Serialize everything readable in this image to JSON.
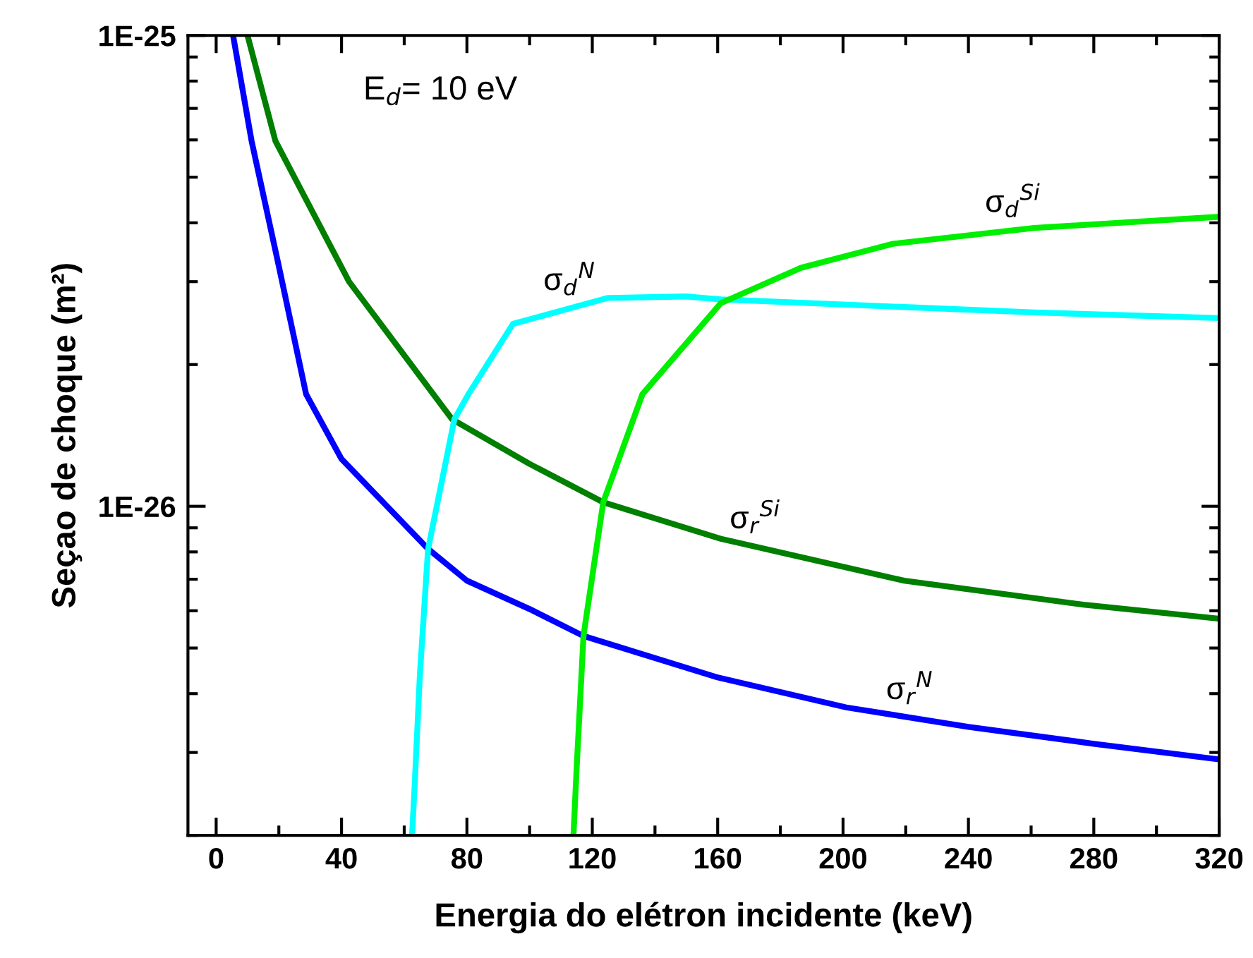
{
  "chart_data": {
    "type": "line",
    "xlabel": "Energia do elétron incidente (keV)",
    "ylabel": "Seçao de choque (m²)",
    "log": "y",
    "xlim": [
      -9,
      320
    ],
    "ylim": [
      2e-27,
      1e-25
    ],
    "xticks": [
      0,
      40,
      80,
      120,
      160,
      200,
      240,
      280,
      320
    ],
    "yticks": [
      {
        "value": 1e-25,
        "label": "1E-25"
      },
      {
        "value": 1e-26,
        "label": "1E-26"
      }
    ],
    "grid": false,
    "legend": false,
    "marker": "none",
    "line_style": "solid",
    "series": [
      {
        "name": "σ$_{r}$$^{N}$",
        "color": "#0000ff",
        "x": [
          5.4,
          11.3,
          19.8,
          28.7,
          40,
          67.6,
          80,
          100,
          117,
          160,
          201,
          240,
          280,
          320
        ],
        "values": [
          1e-25,
          5.97e-26,
          3.28e-26,
          1.73e-26,
          1.26e-26,
          8.12e-27,
          6.95e-27,
          6.05e-27,
          5.31e-27,
          4.33e-27,
          3.74e-27,
          3.4e-27,
          3.13e-27,
          2.9e-27
        ]
      },
      {
        "name": "σ$_{r}$$^{Si}$",
        "color": "#007f00",
        "x": [
          10,
          18.9,
          42.4,
          75.3,
          100,
          123.5,
          161,
          219.5,
          276.7,
          320
        ],
        "values": [
          1e-25,
          5.97e-26,
          3e-26,
          1.53e-26,
          1.23e-26,
          1.02e-26,
          8.53e-27,
          6.95e-27,
          6.18e-27,
          5.77e-27
        ]
      },
      {
        "name": "σ$_{d}$$^{N}$",
        "color": "#00ffff",
        "x": [
          62.5,
          63.3,
          65,
          67.6,
          76,
          80.5,
          94.7,
          125,
          150,
          161,
          261,
          320
        ],
        "values": [
          2e-27,
          2.53e-27,
          4.39e-27,
          8.1e-27,
          1.53e-26,
          1.73e-26,
          2.44e-26,
          2.77e-26,
          2.79e-26,
          2.75e-26,
          2.58e-26,
          2.51e-26
        ]
      },
      {
        "name": "σ$_{d}$$^{Si}$",
        "color": "#00ee00",
        "x": [
          114,
          115,
          117.2,
          123.5,
          136,
          161,
          186.6,
          216,
          261,
          320
        ],
        "values": [
          2e-27,
          2.77e-27,
          5.31e-27,
          1.02e-26,
          1.73e-26,
          2.7e-26,
          3.21e-26,
          3.61e-26,
          3.9e-26,
          4.12e-26
        ]
      }
    ],
    "annotations": [
      "E$_{d}$= 10 eV"
    ]
  }
}
